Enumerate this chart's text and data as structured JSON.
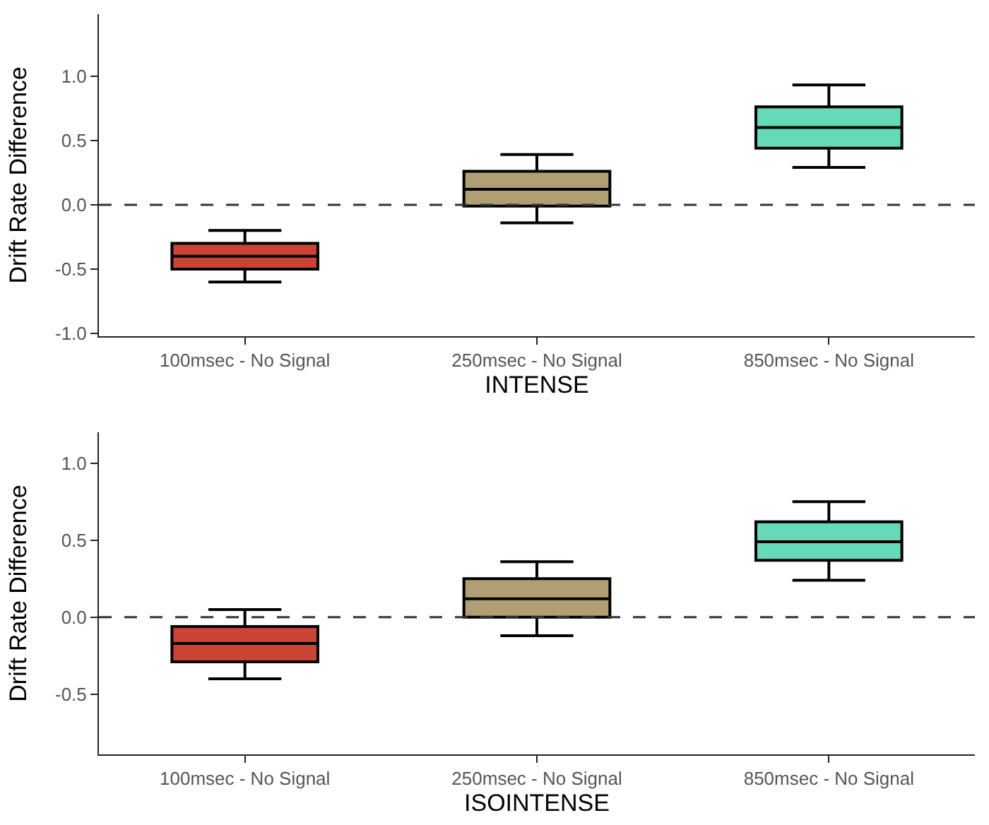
{
  "chart_data": [
    {
      "type": "box",
      "xlabel": "INTENSE",
      "ylabel": "Drift Rate Difference",
      "categories": [
        "100msec - No Signal",
        "250msec - No Signal",
        "850msec - No Signal"
      ],
      "colors": [
        "#c94435",
        "#b09f72",
        "#66d9b8"
      ],
      "boxes": [
        {
          "low": -0.6,
          "q1": -0.5,
          "median": -0.4,
          "q3": -0.3,
          "high": -0.2
        },
        {
          "low": -0.14,
          "q1": -0.01,
          "median": 0.12,
          "q3": 0.26,
          "high": 0.39
        },
        {
          "low": 0.29,
          "q1": 0.44,
          "median": 0.6,
          "q3": 0.76,
          "high": 0.93
        }
      ],
      "ylim": [
        -1.02,
        1.48
      ],
      "yticks": [
        {
          "value": -1,
          "label": "-1.0"
        },
        {
          "value": -0.5,
          "label": "-0.5"
        },
        {
          "value": 0,
          "label": "0.0"
        },
        {
          "value": 0.5,
          "label": "0.5"
        },
        {
          "value": 1,
          "label": "1.0"
        }
      ],
      "ref_lines": [
        {
          "axis": "y",
          "value": 0,
          "line_style": "dashed",
          "color": "#333333"
        }
      ]
    },
    {
      "type": "box",
      "xlabel": "ISOINTENSE",
      "ylabel": "Drift Rate Difference",
      "categories": [
        "100msec - No Signal",
        "250msec - No Signal",
        "850msec - No Signal"
      ],
      "colors": [
        "#c94435",
        "#b09f72",
        "#66d9b8"
      ],
      "boxes": [
        {
          "low": -0.4,
          "q1": -0.29,
          "median": -0.17,
          "q3": -0.06,
          "high": 0.05
        },
        {
          "low": -0.12,
          "q1": 0.0,
          "median": 0.12,
          "q3": 0.25,
          "high": 0.36
        },
        {
          "low": 0.24,
          "q1": 0.37,
          "median": 0.49,
          "q3": 0.62,
          "high": 0.75
        }
      ],
      "ylim": [
        -0.89,
        1.2
      ],
      "yticks": [
        {
          "value": -0.5,
          "label": "-0.5"
        },
        {
          "value": 0,
          "label": "0.0"
        },
        {
          "value": 0.5,
          "label": "0.5"
        },
        {
          "value": 1,
          "label": "1.0"
        }
      ],
      "ref_lines": [
        {
          "axis": "y",
          "value": 0,
          "line_style": "dashed",
          "color": "#333333"
        }
      ]
    }
  ]
}
